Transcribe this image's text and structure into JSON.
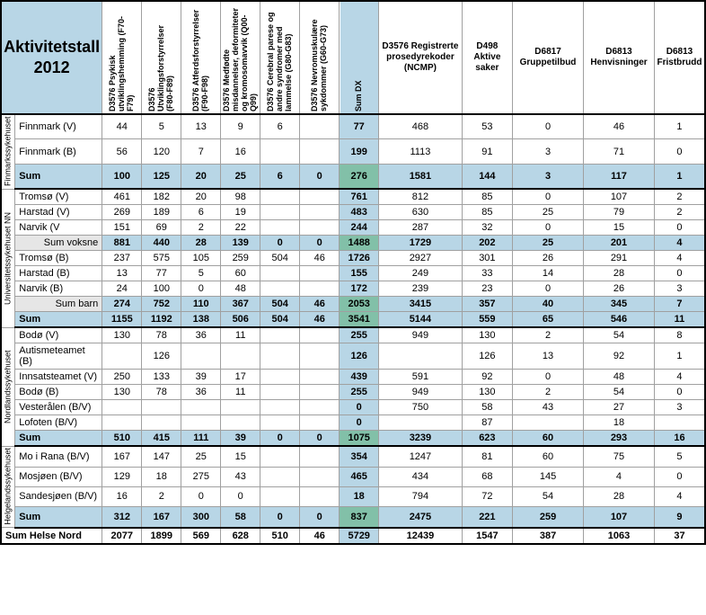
{
  "title_line1": "Aktivitetstall",
  "title_line2": "2012",
  "dx_headers": [
    "D3576 Psykisk utviklingshemming (F70-F79)",
    "D3576 Utviklingsforstyrrelser (F80-F89)",
    "D3576 Atferdsforstyrrelser (F90-F98)",
    "D3576 Medfødte misdannelser, deformiteter og kromosomavvik (Q00-Q99)",
    "D3576 Cerebral parese og andre syndromer med lammelse (G80-G83)",
    "D3576 Nevromuskulære sykdommer (G60-G73)"
  ],
  "sum_dx_header": "Sum DX",
  "right_headers": [
    "D3576 Registrerte prosedyrekoder (NCMP)",
    "D498 Aktive saker",
    "D6817 Gruppetilbud",
    "D6813 Henvisninger",
    "D6813 Fristbrudd"
  ],
  "groups": [
    {
      "label": "Finmarkssykehuset",
      "rows": [
        {
          "name": "Finnmark (V)",
          "dx": [
            "44",
            "5",
            "13",
            "9",
            "6",
            ""
          ],
          "sum": "77",
          "r": [
            "468",
            "53",
            "0",
            "46",
            "1"
          ]
        },
        {
          "name": "Finnmark (B)",
          "dx": [
            "56",
            "120",
            "7",
            "16",
            "",
            ""
          ],
          "sum": "199",
          "r": [
            "1113",
            "91",
            "3",
            "71",
            "0"
          ]
        }
      ],
      "sum": {
        "name": "Sum",
        "dx": [
          "100",
          "125",
          "20",
          "25",
          "6",
          "0"
        ],
        "sum": "276",
        "r": [
          "1581",
          "144",
          "3",
          "117",
          "1"
        ]
      }
    },
    {
      "label": "Universitetssykehuset NN",
      "rows": [
        {
          "name": "Tromsø (V)",
          "dx": [
            "461",
            "182",
            "20",
            "98",
            "",
            ""
          ],
          "sum": "761",
          "r": [
            "812",
            "85",
            "0",
            "107",
            "2"
          ]
        },
        {
          "name": "Harstad (V)",
          "dx": [
            "269",
            "189",
            "6",
            "19",
            "",
            ""
          ],
          "sum": "483",
          "r": [
            "630",
            "85",
            "25",
            "79",
            "2"
          ]
        },
        {
          "name": "Narvik (V",
          "dx": [
            "151",
            "69",
            "2",
            "22",
            "",
            ""
          ],
          "sum": "244",
          "r": [
            "287",
            "32",
            "0",
            "15",
            "0"
          ]
        },
        {
          "name": "Sum voksne",
          "sub": true,
          "dx": [
            "881",
            "440",
            "28",
            "139",
            "0",
            "0"
          ],
          "sum": "1488",
          "r": [
            "1729",
            "202",
            "25",
            "201",
            "4"
          ]
        },
        {
          "name": "Tromsø (B)",
          "dx": [
            "237",
            "575",
            "105",
            "259",
            "504",
            "46"
          ],
          "sum": "1726",
          "r": [
            "2927",
            "301",
            "26",
            "291",
            "4"
          ]
        },
        {
          "name": "Harstad (B)",
          "dx": [
            "13",
            "77",
            "5",
            "60",
            "",
            ""
          ],
          "sum": "155",
          "r": [
            "249",
            "33",
            "14",
            "28",
            "0"
          ]
        },
        {
          "name": "Narvik (B)",
          "dx": [
            "24",
            "100",
            "0",
            "48",
            "",
            ""
          ],
          "sum": "172",
          "r": [
            "239",
            "23",
            "0",
            "26",
            "3"
          ]
        },
        {
          "name": "Sum barn",
          "sub": true,
          "dx": [
            "274",
            "752",
            "110",
            "367",
            "504",
            "46"
          ],
          "sum": "2053",
          "r": [
            "3415",
            "357",
            "40",
            "345",
            "7"
          ]
        }
      ],
      "sum": {
        "name": "Sum",
        "dx": [
          "1155",
          "1192",
          "138",
          "506",
          "504",
          "46"
        ],
        "sum": "3541",
        "r": [
          "5144",
          "559",
          "65",
          "546",
          "11"
        ]
      }
    },
    {
      "label": "Nordlandssykehuset",
      "rows": [
        {
          "name": "Bodø (V)",
          "dx": [
            "130",
            "78",
            "36",
            "11",
            "",
            ""
          ],
          "sum": "255",
          "r": [
            "949",
            "130",
            "2",
            "54",
            "8"
          ]
        },
        {
          "name": "Autismeteamet (B)",
          "dx": [
            "",
            "126",
            "",
            "",
            "",
            ""
          ],
          "sum": "126",
          "r": [
            "",
            "126",
            "13",
            "92",
            "1"
          ]
        },
        {
          "name": "Innsatsteamet (V)",
          "dx": [
            "250",
            "133",
            "39",
            "17",
            "",
            ""
          ],
          "sum": "439",
          "r": [
            "591",
            "92",
            "0",
            "48",
            "4"
          ]
        },
        {
          "name": "Bodø (B)",
          "dx": [
            "130",
            "78",
            "36",
            "11",
            "",
            ""
          ],
          "sum": "255",
          "r": [
            "949",
            "130",
            "2",
            "54",
            "0"
          ]
        },
        {
          "name": "Vesterålen (B/V)",
          "dx": [
            "",
            "",
            "",
            "",
            "",
            ""
          ],
          "sum": "0",
          "r": [
            "750",
            "58",
            "43",
            "27",
            "3"
          ]
        },
        {
          "name": "Lofoten (B/V)",
          "dx": [
            "",
            "",
            "",
            "",
            "",
            ""
          ],
          "sum": "0",
          "r": [
            "",
            "87",
            "",
            "18",
            ""
          ]
        }
      ],
      "sum": {
        "name": "Sum",
        "dx": [
          "510",
          "415",
          "111",
          "39",
          "0",
          "0"
        ],
        "sum": "1075",
        "r": [
          "3239",
          "623",
          "60",
          "293",
          "16"
        ]
      }
    },
    {
      "label": "Helgelandssykehuset",
      "rows": [
        {
          "name": "Mo i Rana (B/V)",
          "dx": [
            "167",
            "147",
            "25",
            "15",
            "",
            ""
          ],
          "sum": "354",
          "r": [
            "1247",
            "81",
            "60",
            "75",
            "5"
          ]
        },
        {
          "name": "Mosjøen (B/V)",
          "dx": [
            "129",
            "18",
            "275",
            "43",
            "",
            ""
          ],
          "sum": "465",
          "r": [
            "434",
            "68",
            "145",
            "4",
            "0"
          ]
        },
        {
          "name": "Sandesjøen (B/V)",
          "dx": [
            "16",
            "2",
            "0",
            "0",
            "",
            ""
          ],
          "sum": "18",
          "r": [
            "794",
            "72",
            "54",
            "28",
            "4"
          ]
        }
      ],
      "sum": {
        "name": "Sum",
        "dx": [
          "312",
          "167",
          "300",
          "58",
          "0",
          "0"
        ],
        "sum": "837",
        "r": [
          "2475",
          "221",
          "259",
          "107",
          "9"
        ]
      }
    }
  ],
  "grand": {
    "name": "Sum Helse Nord",
    "dx": [
      "2077",
      "1899",
      "569",
      "628",
      "510",
      "46"
    ],
    "sum": "5729",
    "r": [
      "12439",
      "1547",
      "387",
      "1063",
      "37"
    ]
  }
}
